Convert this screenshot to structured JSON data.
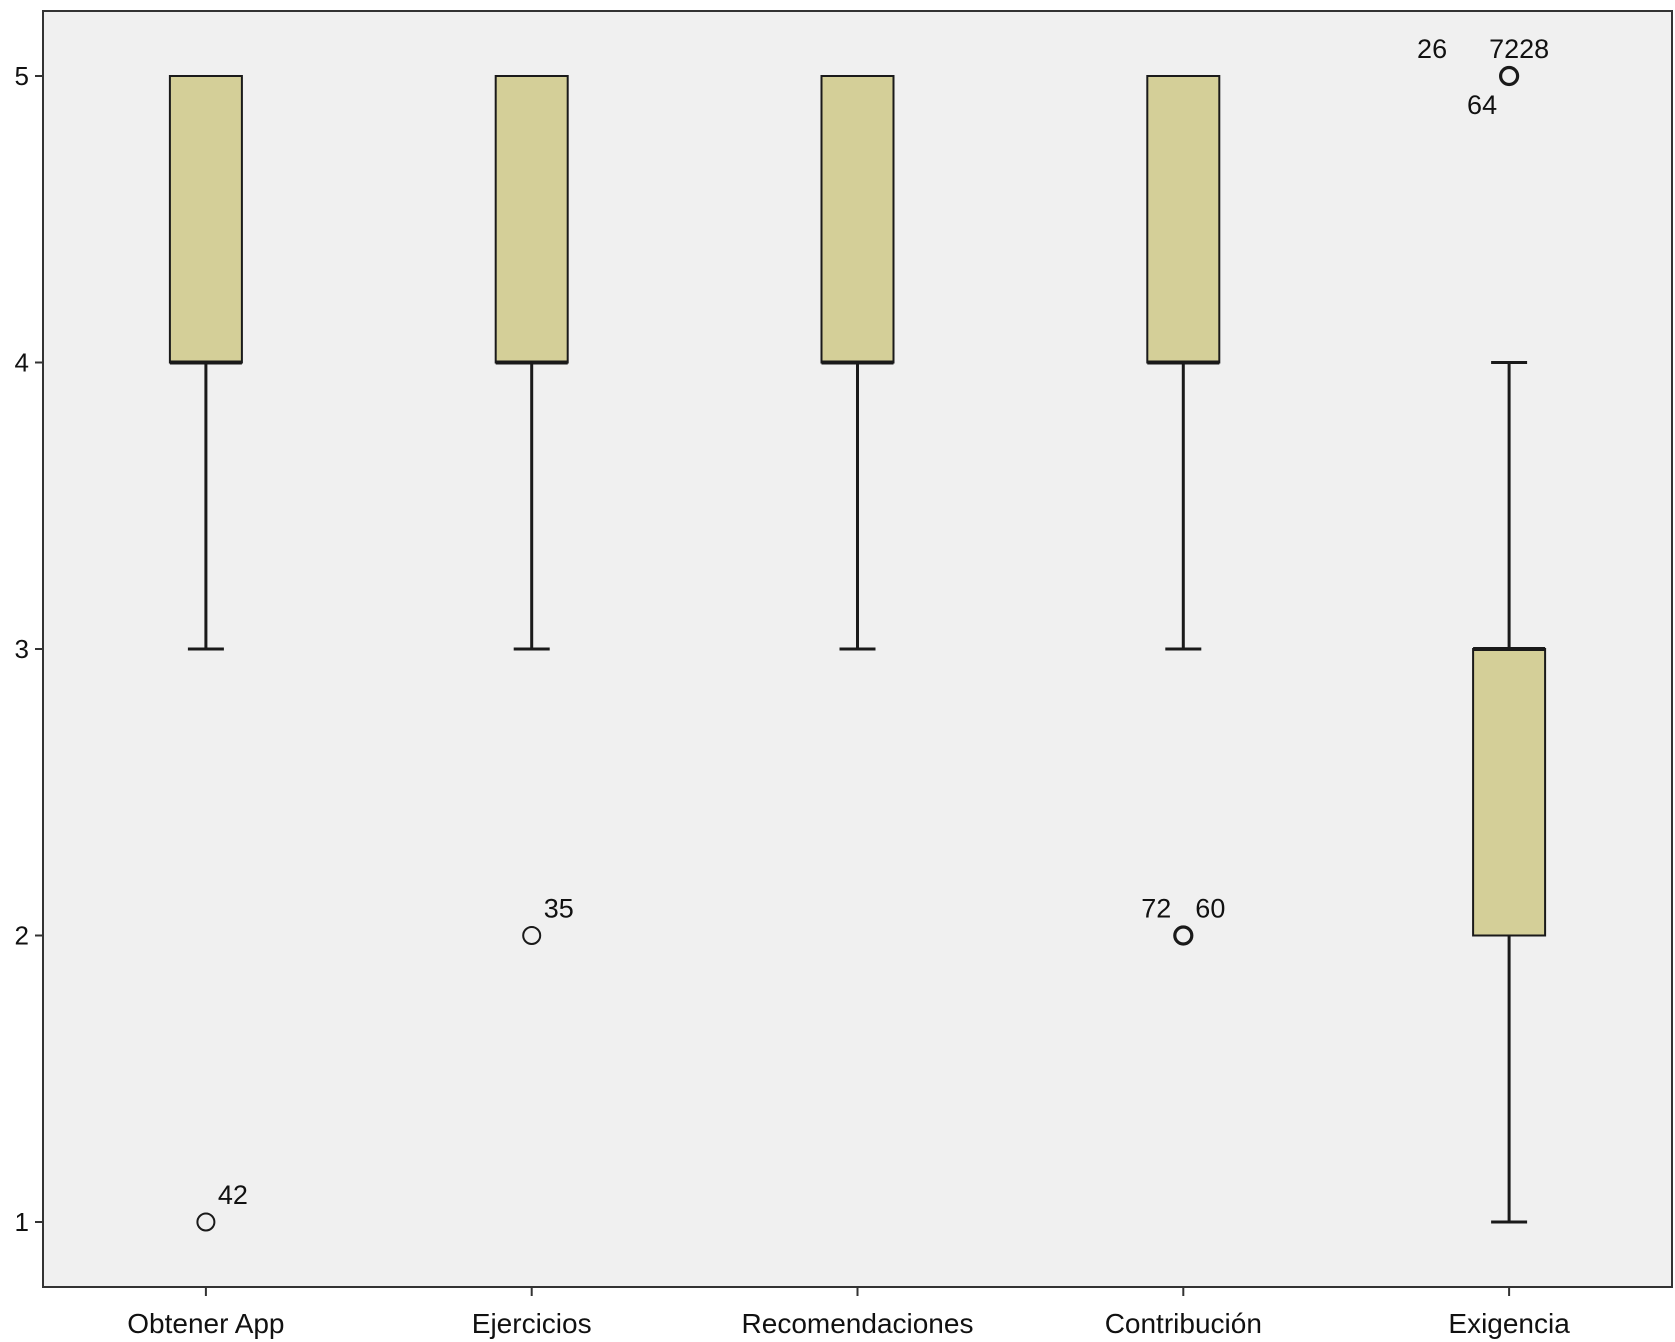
{
  "chart_data": {
    "type": "boxplot",
    "categories": [
      "Obtener App",
      "Ejercicios",
      "Recomendaciones",
      "Contribución",
      "Exigencia"
    ],
    "boxes": [
      {
        "category": "Obtener App",
        "whisker_low": 3,
        "q1": 4,
        "median": 4,
        "q3": 5,
        "whisker_high": 5,
        "outliers": [
          {
            "value": 1,
            "labels": [
              "42"
            ]
          }
        ]
      },
      {
        "category": "Ejercicios",
        "whisker_low": 3,
        "q1": 4,
        "median": 4,
        "q3": 5,
        "whisker_high": 5,
        "outliers": [
          {
            "value": 2,
            "labels": [
              "35"
            ]
          }
        ]
      },
      {
        "category": "Recomendaciones",
        "whisker_low": 3,
        "q1": 4,
        "median": 4,
        "q3": 5,
        "whisker_high": 5,
        "outliers": []
      },
      {
        "category": "Contribución",
        "whisker_low": 3,
        "q1": 4,
        "median": 4,
        "q3": 5,
        "whisker_high": 5,
        "outliers": [
          {
            "value": 2,
            "labels": [
              "72",
              "60"
            ]
          }
        ]
      },
      {
        "category": "Exigencia",
        "whisker_low": 1,
        "q1": 2,
        "median": 3,
        "q3": 3,
        "whisker_high": 4,
        "outliers": [
          {
            "value": 5,
            "labels": [
              "26",
              "7228",
              "64"
            ]
          }
        ]
      }
    ],
    "y_ticks": [
      "1",
      "2",
      "3",
      "4",
      "5"
    ],
    "ylim": [
      0.78,
      5.22
    ],
    "title": "",
    "xlabel": "",
    "ylabel": "",
    "grid": false,
    "legend": "none",
    "colors": {
      "box_fill": "#d4cf98",
      "plot_background": "#f0f0f0",
      "line": "#1a1a1a"
    }
  }
}
